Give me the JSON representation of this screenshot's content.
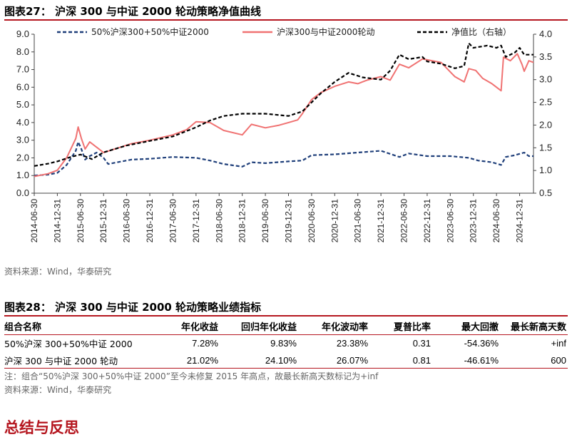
{
  "figure27": {
    "label": "图表27：",
    "title": "沪深 300 与中证 2000 轮动策略净值曲线",
    "source": "资料来源：Wind，华泰研究"
  },
  "chart_data": {
    "type": "line",
    "title": "沪深 300 与中证 2000 轮动策略净值曲线",
    "x_tick_labels": [
      "2014-06-30",
      "2014-12-31",
      "2015-06-30",
      "2015-12-31",
      "2016-06-30",
      "2016-12-31",
      "2017-06-30",
      "2017-12-31",
      "2018-06-30",
      "2018-12-31",
      "2019-06-30",
      "2019-12-31",
      "2020-06-30",
      "2020-12-31",
      "2021-06-30",
      "2021-12-31",
      "2022-06-30",
      "2022-12-31",
      "2023-06-30",
      "2023-12-31",
      "2024-06-30",
      "2024-12-31"
    ],
    "x_tick_decimal_years": [
      2014.5,
      2015.0,
      2015.5,
      2016.0,
      2016.5,
      2017.0,
      2017.5,
      2018.0,
      2018.5,
      2019.0,
      2019.5,
      2020.0,
      2020.5,
      2021.0,
      2021.5,
      2022.0,
      2022.5,
      2023.0,
      2023.5,
      2024.0,
      2024.5,
      2025.0
    ],
    "x_range": [
      2014.5,
      2025.3
    ],
    "y_left": {
      "min": 0.0,
      "max": 9.0,
      "ticks": [
        "0.0",
        "1.0",
        "2.0",
        "3.0",
        "4.0",
        "5.0",
        "6.0",
        "7.0",
        "8.0",
        "9.0"
      ]
    },
    "y_right": {
      "min": 0.5,
      "max": 4.0,
      "ticks": [
        "0.5",
        "1.0",
        "1.5",
        "2.0",
        "2.5",
        "3.0",
        "3.5",
        "4.0"
      ],
      "label": "净值比（右轴）"
    },
    "legend_position": "top",
    "series": [
      {
        "name": "50%沪深300+50%中证2000",
        "axis": "left",
        "style": "dashed",
        "color": "#1f3f7a",
        "points": [
          [
            2014.5,
            1.0
          ],
          [
            2014.8,
            1.05
          ],
          [
            2015.0,
            1.15
          ],
          [
            2015.2,
            1.6
          ],
          [
            2015.4,
            2.4
          ],
          [
            2015.45,
            2.9
          ],
          [
            2015.52,
            2.5
          ],
          [
            2015.6,
            1.9
          ],
          [
            2015.7,
            2.1
          ],
          [
            2015.85,
            2.3
          ],
          [
            2016.0,
            2.0
          ],
          [
            2016.1,
            1.65
          ],
          [
            2016.3,
            1.75
          ],
          [
            2016.6,
            1.9
          ],
          [
            2017.0,
            1.95
          ],
          [
            2017.5,
            2.05
          ],
          [
            2018.0,
            2.0
          ],
          [
            2018.3,
            1.85
          ],
          [
            2018.6,
            1.65
          ],
          [
            2019.0,
            1.5
          ],
          [
            2019.2,
            1.75
          ],
          [
            2019.5,
            1.7
          ],
          [
            2020.0,
            1.8
          ],
          [
            2020.3,
            1.85
          ],
          [
            2020.5,
            2.15
          ],
          [
            2021.0,
            2.2
          ],
          [
            2021.5,
            2.3
          ],
          [
            2022.0,
            2.4
          ],
          [
            2022.4,
            2.05
          ],
          [
            2022.6,
            2.25
          ],
          [
            2023.0,
            2.1
          ],
          [
            2023.5,
            2.1
          ],
          [
            2023.9,
            2.0
          ],
          [
            2024.1,
            1.85
          ],
          [
            2024.4,
            1.75
          ],
          [
            2024.6,
            1.6
          ],
          [
            2024.7,
            2.05
          ],
          [
            2024.9,
            2.15
          ],
          [
            2025.1,
            2.3
          ],
          [
            2025.2,
            2.1
          ],
          [
            2025.3,
            2.1
          ]
        ]
      },
      {
        "name": "沪深300与中证2000轮动",
        "axis": "left",
        "style": "solid",
        "color": "#f07272",
        "points": [
          [
            2014.5,
            0.95
          ],
          [
            2014.8,
            1.1
          ],
          [
            2015.0,
            1.3
          ],
          [
            2015.2,
            2.0
          ],
          [
            2015.4,
            3.1
          ],
          [
            2015.45,
            3.75
          ],
          [
            2015.52,
            3.1
          ],
          [
            2015.6,
            2.5
          ],
          [
            2015.7,
            2.9
          ],
          [
            2015.85,
            2.6
          ],
          [
            2016.0,
            2.3
          ],
          [
            2016.3,
            2.55
          ],
          [
            2016.6,
            2.8
          ],
          [
            2017.0,
            3.0
          ],
          [
            2017.5,
            3.3
          ],
          [
            2017.8,
            3.6
          ],
          [
            2018.0,
            4.05
          ],
          [
            2018.3,
            4.0
          ],
          [
            2018.6,
            3.55
          ],
          [
            2019.0,
            3.3
          ],
          [
            2019.2,
            3.9
          ],
          [
            2019.5,
            3.7
          ],
          [
            2019.8,
            3.85
          ],
          [
            2020.0,
            4.0
          ],
          [
            2020.2,
            4.15
          ],
          [
            2020.3,
            4.5
          ],
          [
            2020.5,
            5.3
          ],
          [
            2020.7,
            5.7
          ],
          [
            2021.0,
            6.05
          ],
          [
            2021.3,
            6.3
          ],
          [
            2021.5,
            6.2
          ],
          [
            2021.7,
            6.4
          ],
          [
            2022.0,
            6.6
          ],
          [
            2022.2,
            6.4
          ],
          [
            2022.4,
            7.3
          ],
          [
            2022.6,
            7.1
          ],
          [
            2022.9,
            7.6
          ],
          [
            2023.0,
            7.55
          ],
          [
            2023.3,
            7.4
          ],
          [
            2023.6,
            6.6
          ],
          [
            2023.8,
            6.3
          ],
          [
            2023.9,
            7.05
          ],
          [
            2024.05,
            6.95
          ],
          [
            2024.2,
            6.5
          ],
          [
            2024.4,
            6.2
          ],
          [
            2024.6,
            5.8
          ],
          [
            2024.65,
            7.7
          ],
          [
            2024.8,
            7.5
          ],
          [
            2024.95,
            7.9
          ],
          [
            2025.05,
            7.3
          ],
          [
            2025.1,
            6.9
          ],
          [
            2025.2,
            7.5
          ],
          [
            2025.3,
            7.4
          ]
        ]
      },
      {
        "name": "净值比（右轴）",
        "axis": "right",
        "style": "dashed",
        "color": "#000000",
        "points": [
          [
            2014.5,
            1.1
          ],
          [
            2014.8,
            1.15
          ],
          [
            2015.0,
            1.2
          ],
          [
            2015.3,
            1.3
          ],
          [
            2015.5,
            1.35
          ],
          [
            2015.75,
            1.25
          ],
          [
            2016.0,
            1.4
          ],
          [
            2016.5,
            1.55
          ],
          [
            2017.0,
            1.65
          ],
          [
            2017.5,
            1.75
          ],
          [
            2018.0,
            1.95
          ],
          [
            2018.3,
            2.1
          ],
          [
            2018.6,
            2.2
          ],
          [
            2019.0,
            2.25
          ],
          [
            2019.5,
            2.25
          ],
          [
            2020.0,
            2.2
          ],
          [
            2020.3,
            2.3
          ],
          [
            2020.5,
            2.5
          ],
          [
            2020.7,
            2.7
          ],
          [
            2021.0,
            2.95
          ],
          [
            2021.3,
            3.15
          ],
          [
            2021.6,
            3.05
          ],
          [
            2022.0,
            3.0
          ],
          [
            2022.2,
            3.2
          ],
          [
            2022.4,
            3.55
          ],
          [
            2022.6,
            3.45
          ],
          [
            2022.9,
            3.5
          ],
          [
            2023.0,
            3.4
          ],
          [
            2023.3,
            3.35
          ],
          [
            2023.6,
            3.25
          ],
          [
            2023.8,
            3.3
          ],
          [
            2023.9,
            3.8
          ],
          [
            2024.0,
            3.7
          ],
          [
            2024.3,
            3.75
          ],
          [
            2024.5,
            3.7
          ],
          [
            2024.6,
            3.75
          ],
          [
            2024.7,
            3.5
          ],
          [
            2024.9,
            3.6
          ],
          [
            2025.0,
            3.7
          ],
          [
            2025.1,
            3.55
          ],
          [
            2025.3,
            3.55
          ]
        ]
      }
    ]
  },
  "figure28": {
    "label": "图表28：",
    "title": "沪深 300 与中证 2000 轮动策略业绩指标",
    "columns": [
      "组合名称",
      "年化收益",
      "回归年化收益",
      "年化波动率",
      "夏普比率",
      "最大回撤",
      "最长新高天数"
    ],
    "rows": [
      [
        "50%沪深 300+50%中证 2000",
        "7.28%",
        "9.83%",
        "23.38%",
        "0.31",
        "-54.36%",
        "+inf"
      ],
      [
        "沪深 300 与中证 2000 轮动",
        "21.02%",
        "24.10%",
        "26.07%",
        "0.81",
        "-46.61%",
        "600"
      ]
    ],
    "note": "注：组合“50%沪深 300+50%中证 2000”至今未修复 2015 年高点，故最长新高天数标记为+inf",
    "source": "资料来源：Wind，华泰研究"
  },
  "section": {
    "heading": "总结与反思"
  }
}
